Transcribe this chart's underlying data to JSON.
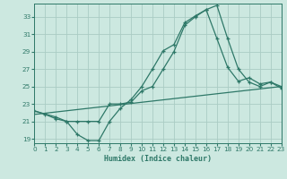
{
  "xlabel": "Humidex (Indice chaleur)",
  "xlim": [
    0,
    23
  ],
  "ylim": [
    18.5,
    34.5
  ],
  "xticks": [
    0,
    1,
    2,
    3,
    4,
    5,
    6,
    7,
    8,
    9,
    10,
    11,
    12,
    13,
    14,
    15,
    16,
    17,
    18,
    19,
    20,
    21,
    22,
    23
  ],
  "yticks": [
    19,
    21,
    23,
    25,
    27,
    29,
    31,
    33
  ],
  "bg_color": "#cce8e0",
  "grid_color": "#aaccc4",
  "line_color": "#2e7868",
  "line1_x": [
    0,
    1,
    2,
    3,
    4,
    5,
    6,
    7,
    8,
    9,
    10,
    11,
    12,
    13,
    14,
    15,
    16,
    17,
    18,
    19,
    20,
    21,
    22,
    23
  ],
  "line1_y": [
    22.2,
    21.8,
    21.3,
    21.0,
    19.5,
    18.8,
    18.8,
    21.0,
    22.5,
    23.5,
    25.0,
    27.0,
    29.1,
    29.8,
    32.3,
    33.1,
    33.8,
    34.3,
    30.5,
    27.0,
    25.5,
    25.0,
    25.5,
    24.8
  ],
  "line2_x": [
    0,
    2,
    3,
    4,
    5,
    6,
    7,
    8,
    9,
    10,
    11,
    12,
    13,
    14,
    15,
    16,
    17,
    18,
    19,
    20,
    21,
    22,
    23
  ],
  "line2_y": [
    22.2,
    21.5,
    21.0,
    21.0,
    21.0,
    21.0,
    23.0,
    23.0,
    23.2,
    24.5,
    25.0,
    27.0,
    29.0,
    32.0,
    33.0,
    33.8,
    30.5,
    27.2,
    25.6,
    26.0,
    25.3,
    25.5,
    25.0
  ],
  "line3_x": [
    0,
    23
  ],
  "line3_y": [
    21.8,
    25.0
  ]
}
